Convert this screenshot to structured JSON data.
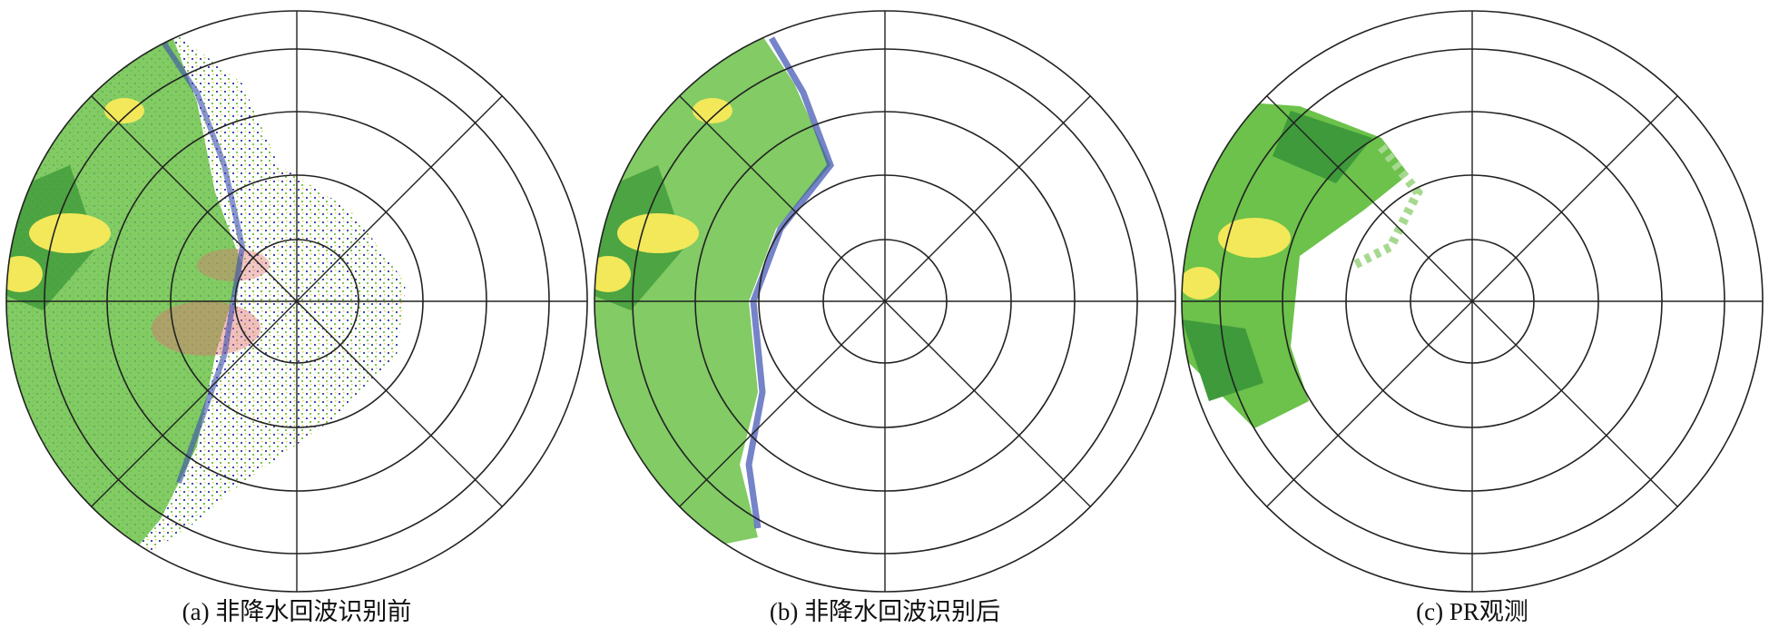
{
  "panels": [
    {
      "caption": "(a) 非降水回波识别前"
    },
    {
      "caption": "(b) 非降水回波识别后"
    },
    {
      "caption": "(c) PR观测"
    }
  ]
}
